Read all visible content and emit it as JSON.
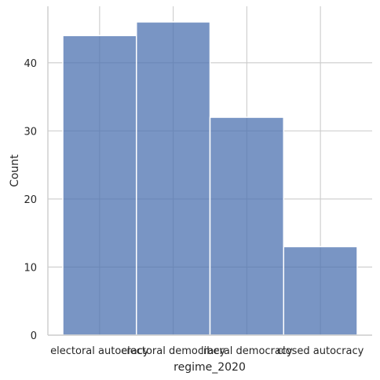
{
  "chart_data": {
    "type": "bar",
    "title": "",
    "xlabel": "regime_2020",
    "ylabel": "Count",
    "categories": [
      "electoral autocracy",
      "electoral democracy",
      "liberal democracy",
      "closed autocracy"
    ],
    "values": [
      44,
      46,
      32,
      13
    ],
    "ylim": [
      0,
      48.3
    ],
    "yticks": [
      0,
      10,
      20,
      30,
      40
    ],
    "grid": true,
    "colors": {
      "bar_fill": "#4c72b0",
      "bar_edge": "#ffffff",
      "grid": "#cccccc",
      "axis": "#cccccc"
    }
  }
}
